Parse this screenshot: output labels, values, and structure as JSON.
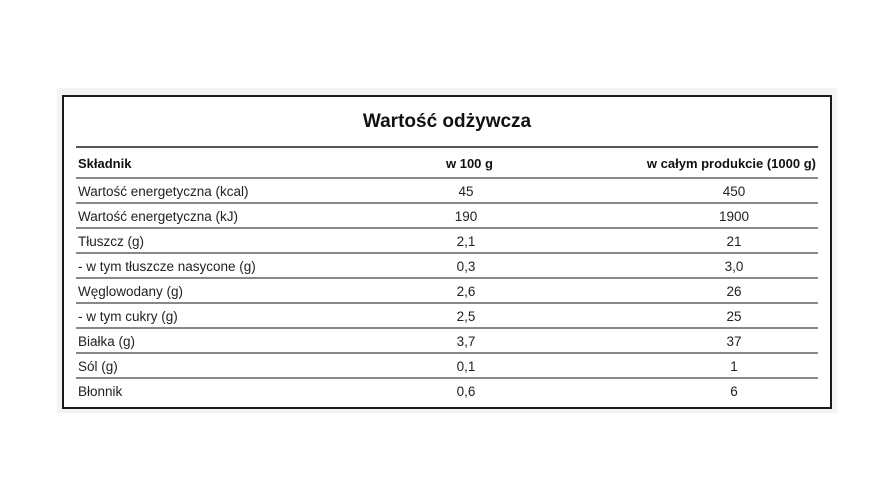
{
  "title": "Wartość odżywcza",
  "headers": [
    "Składnik",
    "w 100 g",
    "w całym produkcie (1000 g)"
  ],
  "rows": [
    [
      "Wartość energetyczna (kcal)",
      "45",
      "450"
    ],
    [
      "Wartość energetyczna (kJ)",
      "190",
      "1900"
    ],
    [
      "Tłuszcz (g)",
      "2,1",
      "21"
    ],
    [
      "- w tym tłuszcze nasycone (g)",
      "0,3",
      "3,0"
    ],
    [
      "Węglowodany (g)",
      "2,6",
      "26"
    ],
    [
      "- w tym cukry (g)",
      "2,5",
      "25"
    ],
    [
      "Białka (g)",
      "3,7",
      "37"
    ],
    [
      "Sól (g)",
      "0,1",
      "1"
    ],
    [
      "Błonnik",
      "0,6",
      "6"
    ]
  ]
}
